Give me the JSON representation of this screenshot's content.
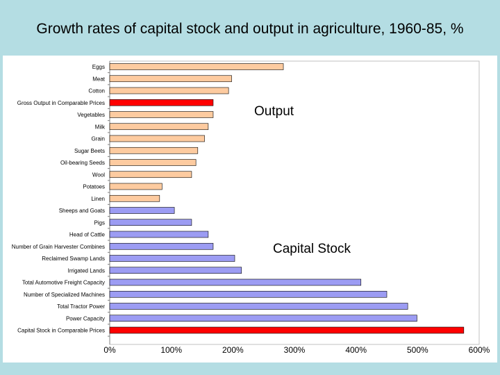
{
  "title": "Growth rates of capital stock and output in agriculture, 1960-85, %",
  "chart_data": {
    "type": "bar",
    "orientation": "horizontal",
    "title": "Growth rates of capital stock and output in agriculture, 1960-85, %",
    "xlim": [
      0,
      600
    ],
    "ticks": [
      "0%",
      "100%",
      "200%",
      "300%",
      "400%",
      "500%",
      "600%"
    ],
    "tick_values": [
      0,
      100,
      200,
      300,
      400,
      500,
      600
    ],
    "annotations": [
      "Output",
      "Capital Stock"
    ],
    "colors": {
      "output": "#fdcba0",
      "capital": "#9c9cf3",
      "highlight": "#ff0000",
      "border": "#000000"
    },
    "categories": [
      "Eggs",
      "Meat",
      "Cotton",
      "Gross Output in Comparable Prices",
      "Vegetables",
      "Milk",
      "Grain",
      "Sugar Beets",
      "Oil-bearing Seeds",
      "Wool",
      "Potatoes",
      "Linen",
      "Sheeps and Goats",
      "Pigs",
      "Head of Cattle",
      "Number of Grain Harvester Combines",
      "Reclaimed Swamp Lands",
      "Irrigated Lands",
      "Total Automotive Freight Capacity",
      "Number of Specialized Machines",
      "Total Tractor Power",
      "Power Capacity",
      "Capital Stock in Comparable Prices"
    ],
    "values": [
      282,
      198,
      193,
      168,
      168,
      160,
      154,
      143,
      140,
      133,
      85,
      81,
      105,
      133,
      160,
      168,
      203,
      214,
      408,
      450,
      484,
      499,
      575
    ],
    "groups": [
      "output",
      "output",
      "output",
      "highlight",
      "output",
      "output",
      "output",
      "output",
      "output",
      "output",
      "output",
      "output",
      "capital",
      "capital",
      "capital",
      "capital",
      "capital",
      "capital",
      "capital",
      "capital",
      "capital",
      "capital",
      "highlight"
    ]
  }
}
